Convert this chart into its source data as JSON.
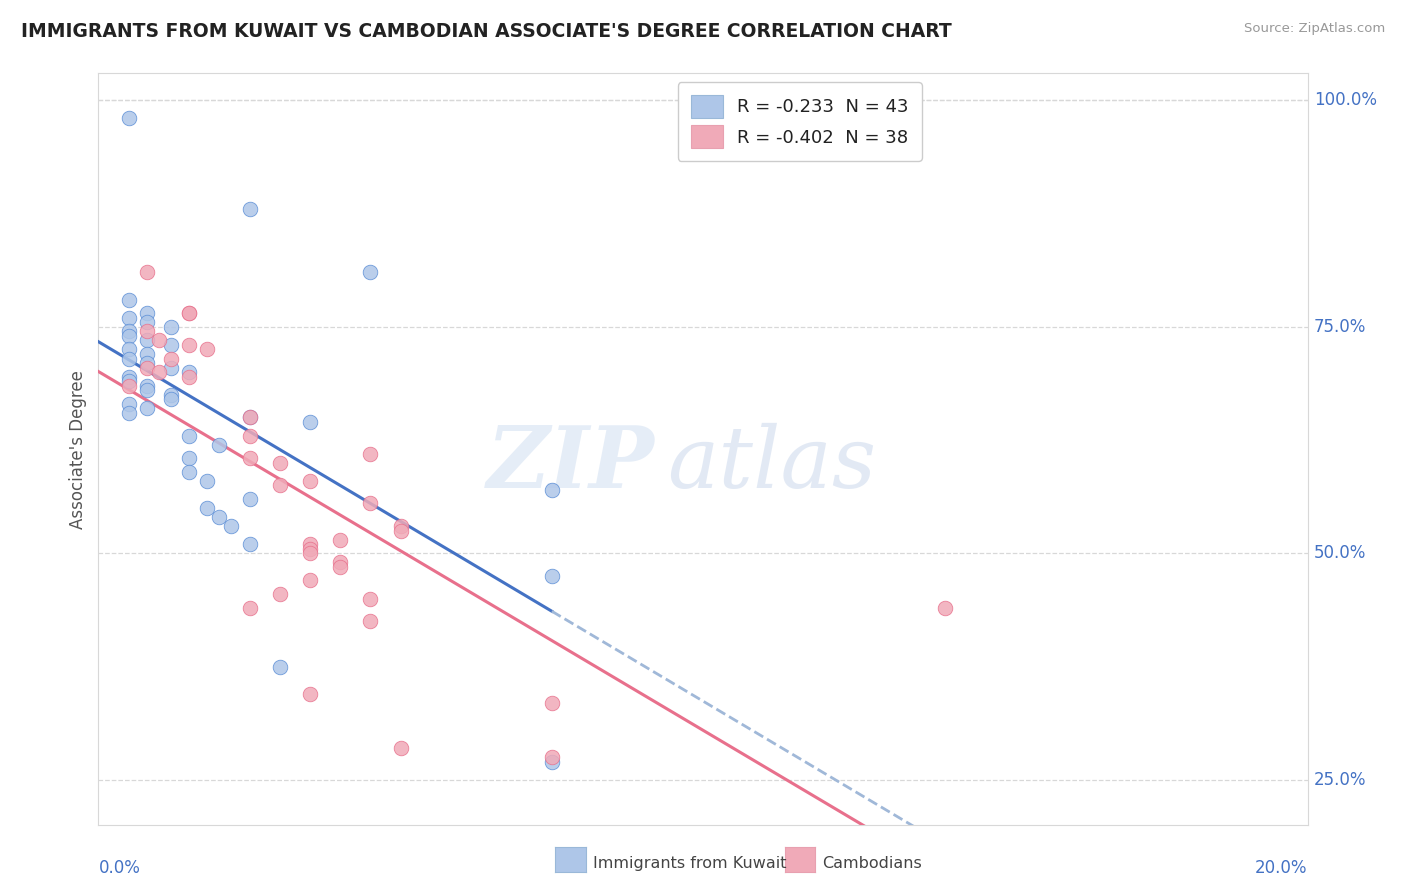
{
  "title": "IMMIGRANTS FROM KUWAIT VS CAMBODIAN ASSOCIATE'S DEGREE CORRELATION CHART",
  "source": "Source: ZipAtlas.com",
  "ylabel": "Associate's Degree",
  "legend_entry1": "R = -0.233  N = 43",
  "legend_entry2": "R = -0.402  N = 38",
  "legend_label1": "Immigrants from Kuwait",
  "legend_label2": "Cambodians",
  "xmin": 0.0,
  "xmax": 20.0,
  "ymin": 20.0,
  "ymax": 103.0,
  "yticks": [
    25.0,
    50.0,
    75.0,
    100.0
  ],
  "ytick_labels": [
    "25.0%",
    "50.0%",
    "75.0%",
    "100.0%"
  ],
  "x_left_label": "0.0%",
  "x_right_label": "20.0%",
  "blue_color": "#aec6e8",
  "pink_color": "#f0aab8",
  "blue_edge": "#5b8ed6",
  "pink_edge": "#e8708c",
  "blue_line": "#4472c4",
  "pink_line": "#e8708c",
  "dashed_line": "#a0b8d8",
  "axis_color": "#4472c4",
  "title_color": "#222222",
  "grid_color": "#d8d8d8",
  "blue_scatter_x": [
    0.5,
    2.5,
    4.5,
    0.5,
    0.8,
    0.5,
    0.8,
    1.2,
    0.5,
    0.5,
    0.8,
    1.2,
    0.5,
    0.8,
    0.5,
    0.8,
    1.2,
    1.5,
    0.5,
    0.5,
    0.8,
    0.8,
    1.2,
    1.2,
    0.5,
    0.8,
    0.5,
    2.5,
    3.5,
    1.5,
    2.0,
    1.5,
    1.5,
    1.8,
    7.5,
    2.5,
    1.8,
    2.0,
    2.2,
    2.5,
    7.5,
    3.0,
    7.5
  ],
  "blue_scatter_y": [
    98.0,
    88.0,
    81.0,
    78.0,
    76.5,
    76.0,
    75.5,
    75.0,
    74.5,
    74.0,
    73.5,
    73.0,
    72.5,
    72.0,
    71.5,
    71.0,
    70.5,
    70.0,
    69.5,
    69.0,
    68.5,
    68.0,
    67.5,
    67.0,
    66.5,
    66.0,
    65.5,
    65.0,
    64.5,
    63.0,
    62.0,
    60.5,
    59.0,
    58.0,
    57.0,
    56.0,
    55.0,
    54.0,
    53.0,
    51.0,
    47.5,
    37.5,
    27.0
  ],
  "pink_scatter_x": [
    0.8,
    1.5,
    1.5,
    0.8,
    1.0,
    1.5,
    1.8,
    1.2,
    0.8,
    1.0,
    1.5,
    0.5,
    2.5,
    2.5,
    4.5,
    2.5,
    3.0,
    3.5,
    3.0,
    4.5,
    5.0,
    5.0,
    4.0,
    3.5,
    3.5,
    3.5,
    4.0,
    4.0,
    3.5,
    3.0,
    4.5,
    2.5,
    4.5,
    3.5,
    7.5,
    14.0,
    5.0,
    7.5
  ],
  "pink_scatter_y": [
    81.0,
    76.5,
    76.5,
    74.5,
    73.5,
    73.0,
    72.5,
    71.5,
    70.5,
    70.0,
    69.5,
    68.5,
    65.0,
    63.0,
    61.0,
    60.5,
    60.0,
    58.0,
    57.5,
    55.5,
    53.0,
    52.5,
    51.5,
    51.0,
    50.5,
    50.0,
    49.0,
    48.5,
    47.0,
    45.5,
    45.0,
    44.0,
    42.5,
    34.5,
    33.5,
    44.0,
    28.5,
    27.5
  ]
}
